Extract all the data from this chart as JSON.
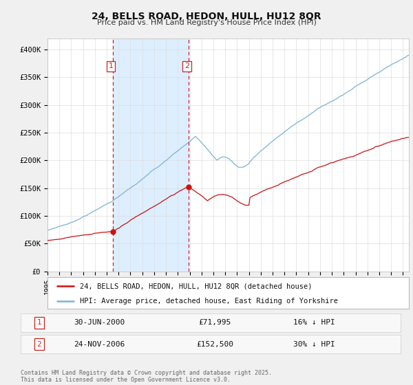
{
  "title1": "24, BELLS ROAD, HEDON, HULL, HU12 8QR",
  "title2": "Price paid vs. HM Land Registry's House Price Index (HPI)",
  "ylim": [
    0,
    420000
  ],
  "yticks": [
    0,
    50000,
    100000,
    150000,
    200000,
    250000,
    300000,
    350000,
    400000
  ],
  "ytick_labels": [
    "£0",
    "£50K",
    "£100K",
    "£150K",
    "£200K",
    "£250K",
    "£300K",
    "£350K",
    "£400K"
  ],
  "hpi_color": "#7ab3d4",
  "price_color": "#cc1111",
  "dashed_color": "#cc2222",
  "shade_color": "#ddeeff",
  "purchase1_year": 2000.5,
  "purchase1_price": 71995,
  "purchase1_label": "1",
  "purchase2_year": 2006.9,
  "purchase2_price": 152500,
  "purchase2_label": "2",
  "legend_house": "24, BELLS ROAD, HEDON, HULL, HU12 8QR (detached house)",
  "legend_hpi": "HPI: Average price, detached house, East Riding of Yorkshire",
  "table_row1_label": "1",
  "table_row1_date": "30-JUN-2000",
  "table_row1_price": "£71,995",
  "table_row1_hpi": "16% ↓ HPI",
  "table_row2_label": "2",
  "table_row2_date": "24-NOV-2006",
  "table_row2_price": "£152,500",
  "table_row2_hpi": "30% ↓ HPI",
  "footer": "Contains HM Land Registry data © Crown copyright and database right 2025.\nThis data is licensed under the Open Government Licence v3.0.",
  "background_color": "#f0f0f0",
  "plot_bg_color": "#ffffff",
  "xmin": 1995,
  "xmax": 2025.5
}
